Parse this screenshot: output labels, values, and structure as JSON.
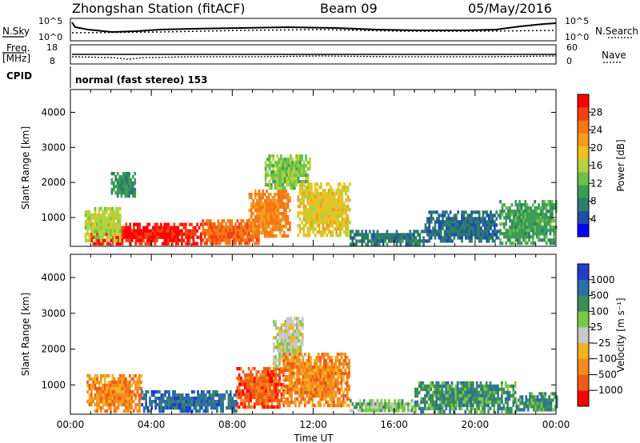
{
  "header": {
    "station": "Zhongshan Station (fitACF)",
    "beam": "Beam 09",
    "date": "05/May/2016"
  },
  "top_panels": {
    "nsky_label": "N.Sky",
    "nsky_ticks": [
      "10^5",
      "10^0"
    ],
    "nsearch_label": "N.Search",
    "nsearch_ticks": [
      "10^5",
      "10^0"
    ],
    "freq_label": "Freq.",
    "freq_unit": "[MHz]",
    "freq_ticks": [
      "18",
      "8"
    ],
    "nave_label": "Nave",
    "nave_ticks": [
      "60",
      "0"
    ],
    "cpid_label": "CPID",
    "cpid_text": "normal (fast stereo) 153"
  },
  "chart_data": [
    {
      "type": "heatmap",
      "name": "power",
      "ylabel": "Slant Range [km]",
      "ylim": [
        180,
        4650
      ],
      "yticks": [
        "4000",
        "3000",
        "2000",
        "1000"
      ],
      "xlabel": "",
      "colorbar": {
        "label": "Power [dB]",
        "ticks": [
          "28",
          "24",
          "20",
          "16",
          "12",
          "8",
          "4"
        ],
        "colors": [
          "#0000ff",
          "#1f4fa8",
          "#2c7b6b",
          "#3c9c55",
          "#6ac24a",
          "#b5d23c",
          "#f0c020",
          "#f59a1e",
          "#f57814",
          "#f24010",
          "#ff0000"
        ]
      },
      "x_hours": [
        0,
        24
      ],
      "blobs": [
        {
          "t0": 1.0,
          "t1": 6.5,
          "r0": 280,
          "r1": 850,
          "v": 27
        },
        {
          "t0": 0.7,
          "t1": 2.5,
          "r0": 350,
          "r1": 1300,
          "v": 15
        },
        {
          "t0": 6.5,
          "t1": 9.3,
          "r0": 280,
          "r1": 950,
          "v": 24
        },
        {
          "t0": 8.8,
          "t1": 10.8,
          "r0": 500,
          "r1": 1800,
          "v": 22
        },
        {
          "t0": 9.6,
          "t1": 11.8,
          "r0": 1800,
          "r1": 2800,
          "v": 13
        },
        {
          "t0": 11.2,
          "t1": 13.8,
          "r0": 500,
          "r1": 2000,
          "v": 17
        },
        {
          "t0": 13.8,
          "t1": 17.5,
          "r0": 280,
          "r1": 650,
          "v": 7
        },
        {
          "t0": 17.5,
          "t1": 21.2,
          "r0": 300,
          "r1": 1200,
          "v": 6
        },
        {
          "t0": 21.2,
          "t1": 24.0,
          "r0": 280,
          "r1": 1500,
          "v": 10
        },
        {
          "t0": 2.0,
          "t1": 3.2,
          "r0": 1600,
          "r1": 2300,
          "v": 9
        }
      ]
    },
    {
      "type": "heatmap",
      "name": "velocity",
      "ylabel": "Slant Range [km]",
      "ylim": [
        180,
        4650
      ],
      "yticks": [
        "4000",
        "3000",
        "2000",
        "1000"
      ],
      "xlabel": "Time UT",
      "xticks": [
        "00:00",
        "04:00",
        "08:00",
        "12:00",
        "16:00",
        "20:00",
        "00:00"
      ],
      "colorbar": {
        "label": "Velocity [m s⁻¹]",
        "ticks": [
          "1000",
          "500",
          "100",
          "25",
          "−25",
          "−100",
          "−500",
          "−1000"
        ],
        "colors": [
          "#ff0000",
          "#f25a14",
          "#f58a1e",
          "#f2b21e",
          "#c8c8c8",
          "#7ac84a",
          "#3c8c55",
          "#2c6ea8",
          "#1f3fc8"
        ]
      },
      "x_hours": [
        0,
        24
      ],
      "blobs": [
        {
          "t0": 0.8,
          "t1": 3.5,
          "r0": 300,
          "r1": 1300,
          "v": 2
        },
        {
          "t0": 3.5,
          "t1": 8.2,
          "r0": 300,
          "r1": 850,
          "v": 7
        },
        {
          "t0": 8.2,
          "t1": 10.5,
          "r0": 350,
          "r1": 1500,
          "v": 1
        },
        {
          "t0": 10.0,
          "t1": 11.5,
          "r0": 1500,
          "r1": 2900,
          "v": 4
        },
        {
          "t0": 10.5,
          "t1": 13.8,
          "r0": 450,
          "r1": 1900,
          "v": 2
        },
        {
          "t0": 13.8,
          "t1": 17.0,
          "r0": 280,
          "r1": 600,
          "v": 5
        },
        {
          "t0": 17.0,
          "t1": 22.0,
          "r0": 280,
          "r1": 1100,
          "v": 6
        },
        {
          "t0": 22.0,
          "t1": 24.0,
          "r0": 300,
          "r1": 800,
          "v": 6
        }
      ]
    }
  ]
}
